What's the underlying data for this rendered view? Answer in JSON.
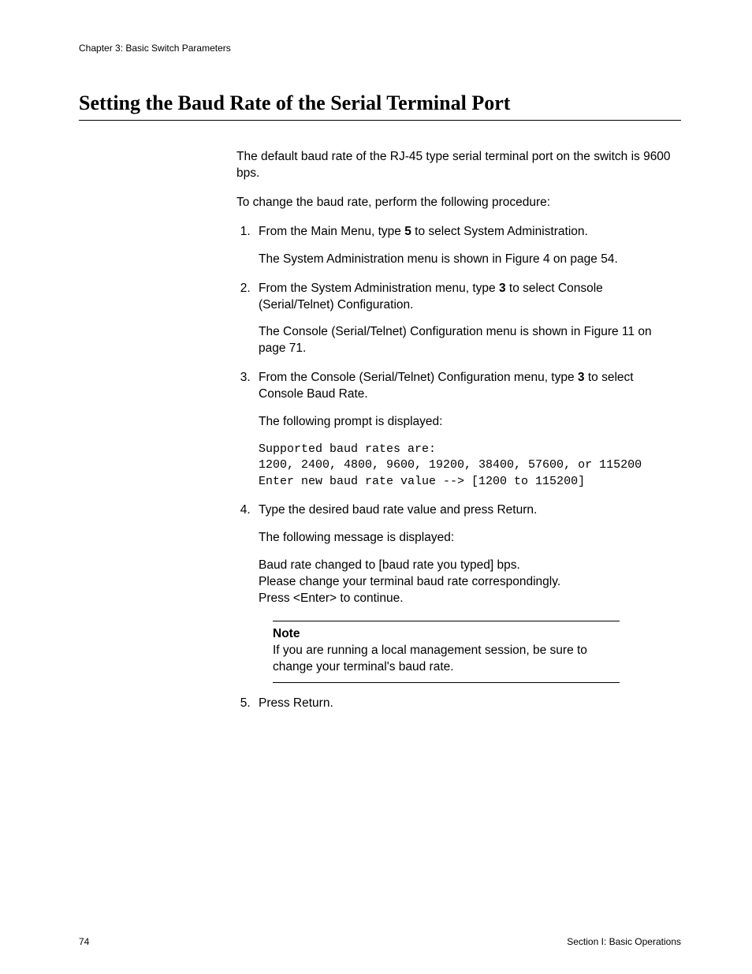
{
  "header": {
    "chapter_label": "Chapter 3: Basic Switch Parameters"
  },
  "title": "Setting the Baud Rate of the Serial Terminal Port",
  "intro": {
    "p1": "The default baud rate of the RJ-45 type serial terminal port on the switch is 9600 bps.",
    "p2": "To change the baud rate, perform the following procedure:"
  },
  "steps": {
    "s1": {
      "pre": "From the Main Menu, type ",
      "bold": "5",
      "post": " to select System Administration.",
      "sub1": "The System Administration menu is shown in Figure 4 on page 54."
    },
    "s2": {
      "pre": "From the System Administration menu, type ",
      "bold": "3",
      "post": " to select Console (Serial/Telnet) Configuration.",
      "sub1": "The Console (Serial/Telnet) Configuration menu is shown in Figure 11 on page 71."
    },
    "s3": {
      "pre": "From the Console (Serial/Telnet) Configuration menu, type ",
      "bold": "3",
      "post": " to select Console Baud Rate.",
      "sub1": "The following prompt is displayed:",
      "code": "Supported baud rates are:\n1200, 2400, 4800, 9600, 19200, 38400, 57600, or 115200\nEnter new baud rate value --> [1200 to 115200]"
    },
    "s4": {
      "text": "Type the desired baud rate value and press Return.",
      "sub1": "The following message is displayed:",
      "sub2": "Baud rate changed to [baud rate you typed] bps.\nPlease change your terminal baud rate correspondingly.\nPress <Enter> to continue.",
      "note_label": "Note",
      "note_body": "If you are running a local management session, be sure to change your terminal's baud rate."
    },
    "s5": {
      "text": "Press Return."
    }
  },
  "footer": {
    "page_number": "74",
    "section_label": "Section I: Basic Operations"
  }
}
